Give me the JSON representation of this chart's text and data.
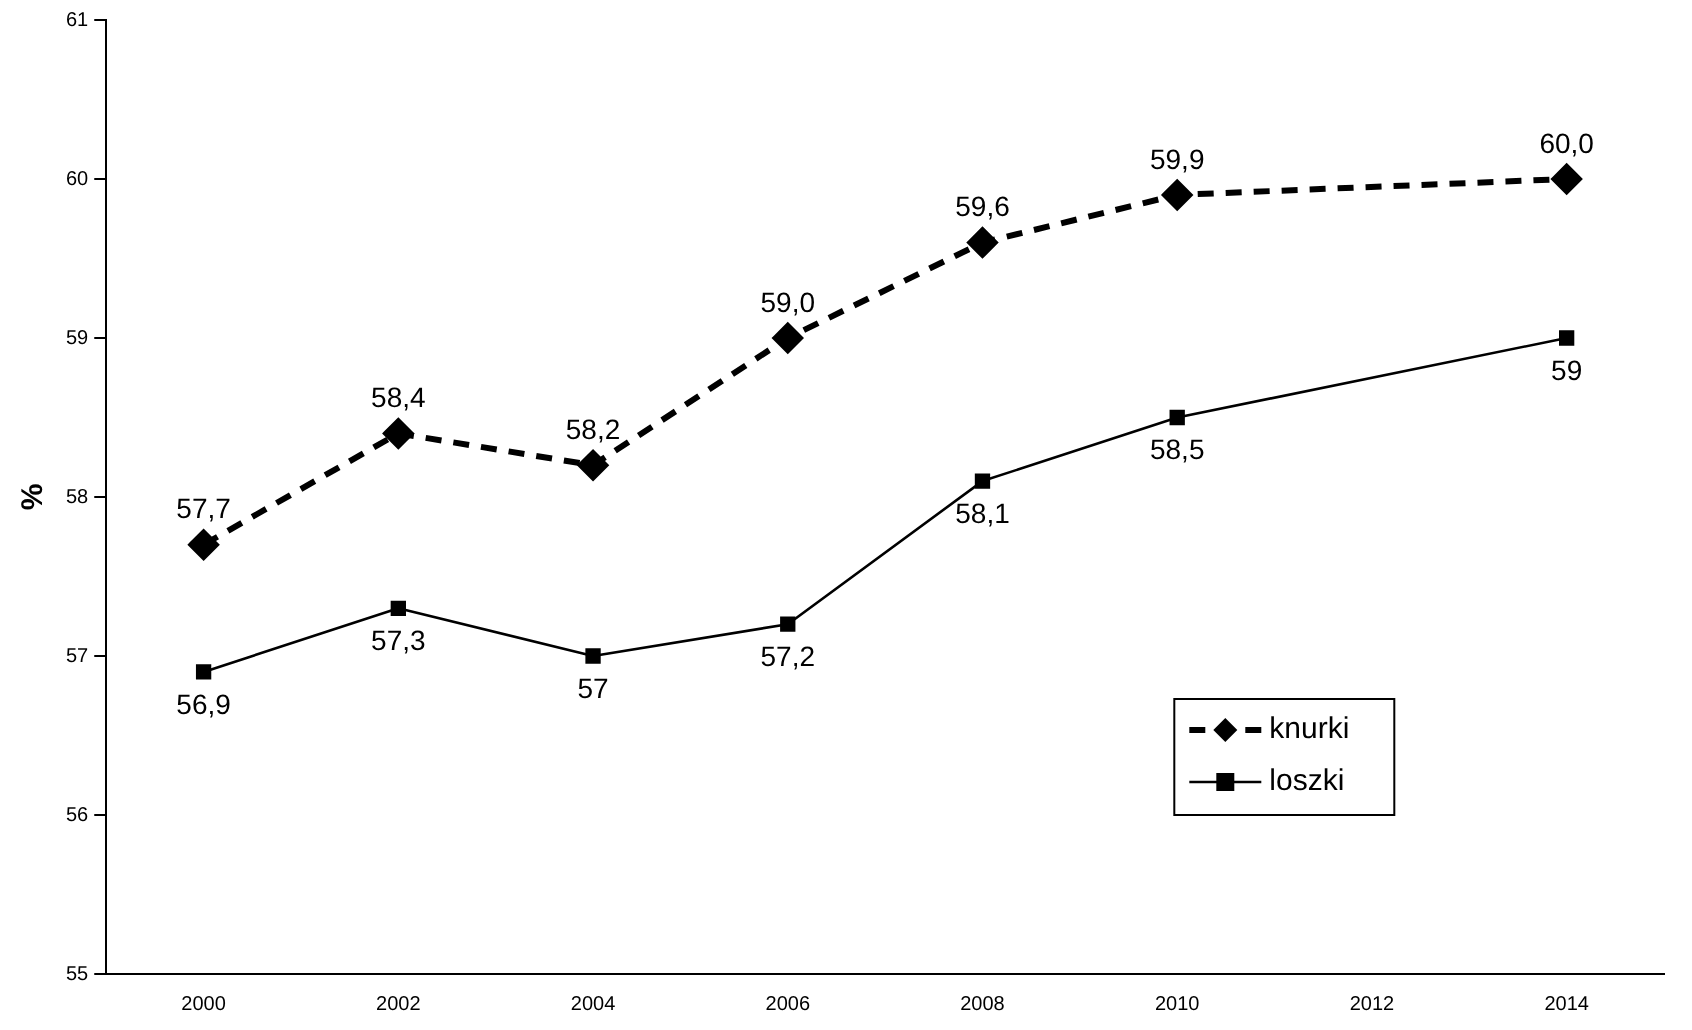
{
  "chart_data": {
    "type": "line",
    "ylabel": "%",
    "categories": [
      "2000",
      "2002",
      "2004",
      "2006",
      "2008",
      "2010",
      "2012",
      "2014"
    ],
    "series": [
      {
        "name": "knurki",
        "color": "#000000",
        "marker": "diamond",
        "line_style": "dashed",
        "values": [
          57.7,
          58.4,
          58.2,
          59.0,
          59.6,
          59.9,
          null,
          60.0
        ],
        "value_labels": [
          "57,7",
          "58,4",
          "58,2",
          "59,0",
          "59,6",
          "59,9",
          null,
          "60,0"
        ]
      },
      {
        "name": "loszki",
        "color": "#000000",
        "marker": "square",
        "line_style": "solid",
        "values": [
          56.9,
          57.3,
          57.0,
          57.2,
          58.1,
          58.5,
          null,
          59.0
        ],
        "value_labels": [
          "56,9",
          "57,3",
          "57",
          "57,2",
          "58,1",
          "58,5",
          null,
          "59"
        ]
      }
    ],
    "ylim": [
      55,
      61
    ],
    "yticks": [
      55,
      56,
      57,
      58,
      59,
      60,
      61
    ],
    "grid": false,
    "legend": "bottom right"
  }
}
